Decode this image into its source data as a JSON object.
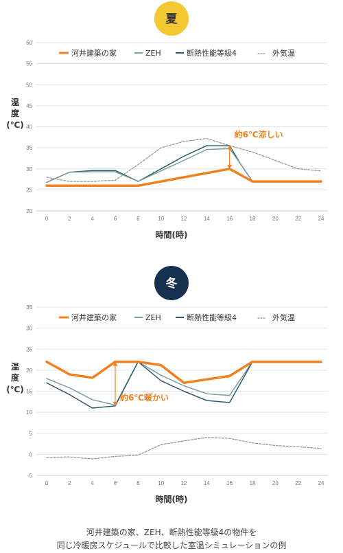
{
  "colors": {
    "house": "#f08020",
    "zeh": "#7a9ea0",
    "grade4": "#2e5a6a",
    "outdoor": "#999999",
    "summer_badge": "#f3c830",
    "winter_badge": "#17304f"
  },
  "legend": {
    "house": "河井建築の家",
    "zeh": "ZEH",
    "grade4": "断熱性能等級4",
    "outdoor_prefix": "---",
    "outdoor": "外気温"
  },
  "chart_data": [
    {
      "type": "line",
      "badge": "夏",
      "ylabel": [
        "温",
        "度",
        "(℃)"
      ],
      "xlabel": "時間(時)",
      "ylim": [
        20,
        60
      ],
      "yticks": [
        20,
        25,
        30,
        35,
        40,
        45,
        50,
        55,
        60
      ],
      "xticks": [
        0,
        2,
        4,
        6,
        8,
        10,
        12,
        14,
        16,
        18,
        20,
        22,
        24
      ],
      "grid": true,
      "legend_position": "top",
      "series": [
        {
          "name": "外気温",
          "key": "outdoor",
          "x": [
            0,
            2,
            4,
            6,
            8,
            10,
            12,
            14,
            16,
            18,
            20,
            22,
            24
          ],
          "values": [
            28,
            27,
            27,
            27.3,
            31,
            35,
            36.5,
            37.2,
            35.5,
            34,
            32,
            30,
            29.5
          ]
        },
        {
          "name": "断熱性能等級4",
          "key": "grade4",
          "x": [
            0,
            2,
            4,
            6,
            8,
            10,
            12,
            14,
            16,
            17,
            18,
            24
          ],
          "values": [
            26.8,
            29.2,
            29.6,
            29.6,
            27,
            30,
            33,
            35.5,
            35.5,
            31,
            27,
            27
          ]
        },
        {
          "name": "ZEH",
          "key": "zeh",
          "x": [
            0,
            2,
            4,
            6,
            8,
            10,
            12,
            14,
            16,
            17,
            18,
            24
          ],
          "values": [
            26.8,
            29.2,
            29.3,
            29.3,
            27,
            29.5,
            32,
            34.6,
            34.8,
            31,
            27,
            27
          ]
        },
        {
          "name": "河井建築の家",
          "key": "house",
          "x": [
            0,
            2,
            4,
            6,
            8,
            16,
            18,
            24
          ],
          "values": [
            26,
            26,
            26,
            26,
            26,
            30,
            27,
            27
          ]
        }
      ],
      "annotation": {
        "text": "約6℃涼しい",
        "x": 16,
        "from": 30,
        "to": 35.6
      }
    },
    {
      "type": "line",
      "badge": "冬",
      "ylabel": [
        "温",
        "度",
        "(℃)"
      ],
      "xlabel": "時間(時)",
      "ylim": [
        -5,
        35
      ],
      "yticks": [
        -5,
        0,
        5,
        10,
        15,
        20,
        25,
        30,
        35
      ],
      "xticks": [
        0,
        2,
        4,
        6,
        8,
        10,
        12,
        14,
        16,
        18,
        20,
        22,
        24
      ],
      "grid": true,
      "legend_position": "top",
      "series": [
        {
          "name": "外気温",
          "key": "outdoor",
          "x": [
            0,
            2,
            4,
            6,
            8,
            10,
            12,
            14,
            16,
            18,
            20,
            22,
            24
          ],
          "values": [
            -0.8,
            -0.6,
            -1.1,
            -0.5,
            -0.2,
            2.3,
            3.2,
            4,
            3.8,
            2.7,
            2.1,
            1.8,
            1.4
          ]
        },
        {
          "name": "ZEH",
          "key": "zeh",
          "x": [
            0,
            2,
            4,
            6,
            8,
            10,
            12,
            14,
            16,
            18,
            24
          ],
          "values": [
            18,
            15.8,
            13,
            11.7,
            22,
            18.8,
            16.3,
            14.4,
            14,
            22,
            22
          ]
        },
        {
          "name": "断熱性能等級4",
          "key": "grade4",
          "x": [
            0,
            2,
            4,
            6,
            8,
            10,
            12,
            14,
            16,
            18,
            24
          ],
          "values": [
            17,
            14.2,
            11,
            11.5,
            22,
            17.5,
            15,
            12.8,
            12.3,
            22,
            22
          ]
        },
        {
          "name": "河井建築の家",
          "key": "house",
          "x": [
            0,
            2,
            4,
            6,
            8,
            10,
            12,
            14,
            16,
            18,
            20,
            22,
            24
          ],
          "values": [
            22,
            19,
            18.2,
            22,
            22,
            21.2,
            17,
            17.8,
            18.6,
            22,
            22,
            22,
            22
          ]
        }
      ],
      "annotation": {
        "text": "約6℃暖かい",
        "x": 6,
        "from": 11.5,
        "to": 22
      }
    }
  ],
  "footnote": {
    "line1": "河井建築の家、ZEH、断熱性能等級4の物件を",
    "line2": "同じ冷暖房スケジュールで比較した室温シミュレーションの例"
  }
}
